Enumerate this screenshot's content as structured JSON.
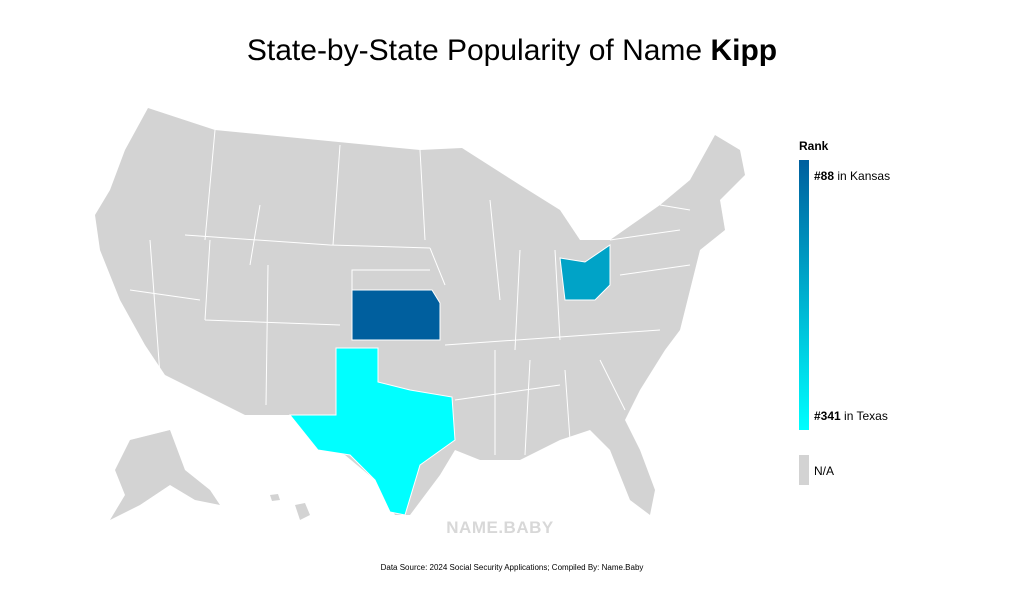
{
  "header": {
    "title": "State-by-State Popularity of Name ",
    "name": "Kipp"
  },
  "map": {
    "base_color": "#d3d3d3",
    "highlight_colors": [
      "#005f9e",
      "#00a3c7",
      "#00ffff"
    ]
  },
  "legend": {
    "title": "Rank",
    "top": {
      "rank": "#88",
      "text": " in Kansas",
      "color": "#005f9e"
    },
    "bottom": {
      "rank": "#341",
      "text": " in Texas",
      "color": "#00ffff"
    },
    "na": {
      "label": "N/A",
      "color": "#d3d3d3"
    }
  },
  "watermark": "NAME.BABY",
  "footer": "Data Source: 2024 Social Security Applications; Compiled By: Name.Baby"
}
